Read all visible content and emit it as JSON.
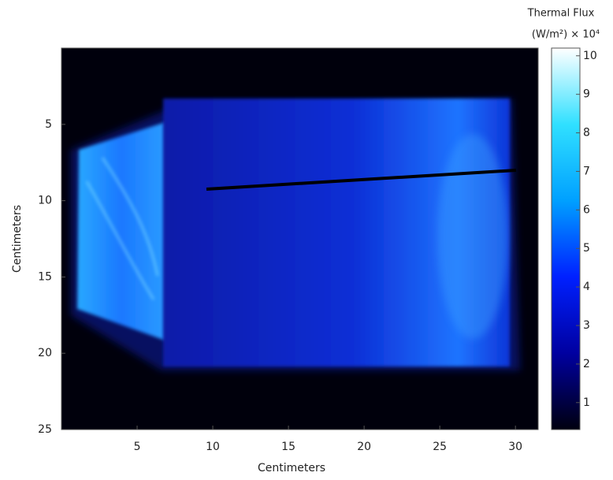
{
  "chart_data": {
    "type": "heatmap",
    "xlabel": "Centimeters",
    "ylabel": "Centimeters",
    "xlim": [
      0,
      31.5
    ],
    "xticks": [
      5,
      10,
      15,
      20,
      25,
      30
    ],
    "ylim": [
      0,
      25
    ],
    "yticks": [
      5,
      10,
      15,
      20,
      25
    ],
    "y_reversed": true,
    "colorbar_title": "Thermal Flux",
    "colorbar_unit": "(W/m²) × 10⁴",
    "clim": [
      0.3,
      10.2
    ],
    "cticks": [
      1,
      2,
      3,
      4,
      5,
      6,
      7,
      8,
      9,
      10
    ],
    "colormap": [
      "#00000f",
      "#0000a0",
      "#0020ff",
      "#00a0ff",
      "#30e0ff",
      "#ffffff"
    ]
  }
}
